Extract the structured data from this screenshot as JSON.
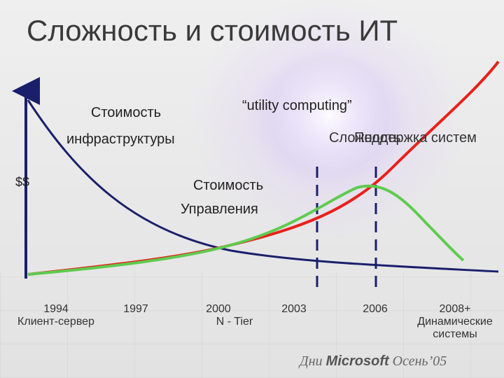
{
  "title": "Сложность и стоимость ИТ",
  "labels": {
    "infra_cost_line1": "Стоимость",
    "infra_cost_line2": "инфраструктуры",
    "utility": "“utility computing”",
    "complexity": "Сложность",
    "support": "Поддержка систем",
    "dollars": "$$",
    "mgmt_cost_line1": "Стоимость",
    "mgmt_cost_line2": "Управления"
  },
  "milestones": [
    {
      "year": "1994",
      "sub": "Клиент-сервер"
    },
    {
      "year": "1997",
      "sub": ""
    },
    {
      "year": "2000",
      "sub": "N - Tier"
    },
    {
      "year": "2003",
      "sub": ""
    },
    {
      "year": "2006",
      "sub": ""
    },
    {
      "year": "2008+",
      "sub": "Динамические",
      "sub2": "системы"
    }
  ],
  "brand": {
    "pre": "Дни",
    "name": "Microsoft",
    "post": "Осень’05"
  },
  "colors": {
    "infrastructure_curve": "#1a1f6b",
    "complexity_curve": "#e8201a",
    "management_curve": "#5ecb4e",
    "axis": "#1a1f6b"
  }
}
